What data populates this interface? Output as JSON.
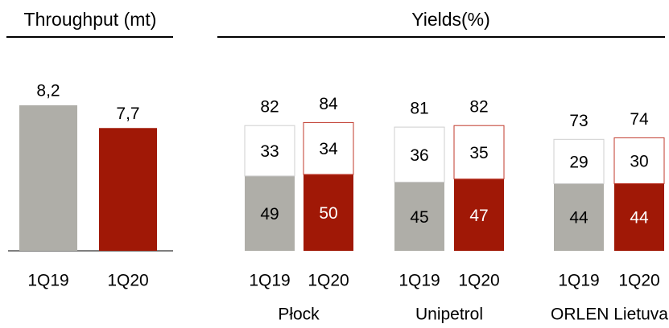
{
  "chart_data": [
    {
      "type": "bar",
      "title": "Throughput (mt)",
      "categories": [
        "1Q19",
        "1Q20"
      ],
      "values": [
        8.2,
        7.7
      ],
      "value_labels": [
        "8,2",
        "7,7"
      ],
      "colors": [
        "#afaea8",
        "#a01806"
      ],
      "ylim": [
        5,
        8.5
      ]
    },
    {
      "type": "stacked_bar",
      "title": "Yields(%)",
      "ylim": [
        0,
        100
      ],
      "colors": [
        "#afaea8",
        "#a01806"
      ],
      "groups": [
        {
          "name": "Płock",
          "categories": [
            "1Q19",
            "1Q20"
          ],
          "series": [
            {
              "values": [
                49,
                50
              ]
            },
            {
              "values": [
                33,
                34
              ]
            }
          ],
          "totals": [
            82,
            84
          ]
        },
        {
          "name": "Unipetrol",
          "categories": [
            "1Q19",
            "1Q20"
          ],
          "series": [
            {
              "values": [
                45,
                47
              ]
            },
            {
              "values": [
                36,
                35
              ]
            }
          ],
          "totals": [
            81,
            82
          ]
        },
        {
          "name": "ORLEN Lietuva",
          "categories": [
            "1Q19",
            "1Q20"
          ],
          "series": [
            {
              "values": [
                44,
                44
              ]
            },
            {
              "values": [
                29,
                30
              ]
            }
          ],
          "totals": [
            73,
            74
          ]
        }
      ]
    }
  ]
}
